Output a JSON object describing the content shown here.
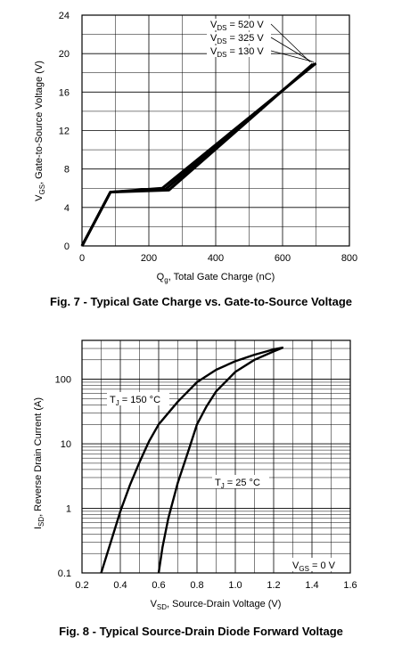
{
  "chart_data": [
    {
      "type": "line",
      "caption": "Fig. 7 - Typical Gate Charge vs. Gate-to-Source Voltage",
      "xlabel_main": "Q",
      "xlabel_sub": "g",
      "xlabel_rest": ", Total Gate Charge (nC)",
      "ylabel_main": "V",
      "ylabel_sub": "GS",
      "ylabel_rest": ", Gate-to-Source Voltage (V)",
      "xlim": [
        0,
        800
      ],
      "ylim": [
        0,
        24
      ],
      "x_ticks": [
        0,
        200,
        400,
        600,
        800
      ],
      "y_ticks": [
        0,
        4,
        8,
        12,
        16,
        20,
        24
      ],
      "grid": true,
      "series": [
        {
          "name": "VDS = 520 V",
          "x": [
            0,
            85,
            240,
            700
          ],
          "y": [
            0,
            5.6,
            6.0,
            19.0
          ]
        },
        {
          "name": "VDS = 325 V",
          "x": [
            0,
            85,
            250,
            695
          ],
          "y": [
            0,
            5.6,
            5.9,
            18.95
          ]
        },
        {
          "name": "VDS = 130 V",
          "x": [
            0,
            85,
            260,
            690
          ],
          "y": [
            0,
            5.6,
            5.8,
            18.9
          ]
        }
      ],
      "annotations": [
        {
          "main": "V",
          "sub": "DS",
          "rest": " = 520 V"
        },
        {
          "main": "V",
          "sub": "DS",
          "rest": " = 325 V"
        },
        {
          "main": "V",
          "sub": "DS",
          "rest": " = 130 V"
        }
      ]
    },
    {
      "type": "line",
      "caption": "Fig. 8 - Typical Source-Drain Diode Forward Voltage",
      "xlabel_main": "V",
      "xlabel_sub": "SD",
      "xlabel_rest": ", Source-Drain Voltage (V)",
      "ylabel_main": "I",
      "ylabel_sub": "SD",
      "ylabel_rest": ", Reverse Drain Current (A)",
      "xlim": [
        0.2,
        1.6
      ],
      "ylim": [
        0.1,
        400
      ],
      "yscale": "log",
      "x_ticks": [
        0.2,
        0.4,
        0.6,
        0.8,
        1.0,
        1.2,
        1.4,
        1.6
      ],
      "x_tick_labels": [
        "0.2",
        "0.4",
        "0.6",
        "0.8",
        "1.0",
        "1.2",
        "1.4",
        "1.6"
      ],
      "y_ticks": [
        0.1,
        1,
        10,
        100
      ],
      "y_tick_labels": [
        "0.1",
        "1",
        "10",
        "100"
      ],
      "grid": true,
      "series": [
        {
          "name": "TJ = 150 °C",
          "x": [
            0.3,
            0.35,
            0.4,
            0.45,
            0.5,
            0.55,
            0.6,
            0.7,
            0.8,
            0.9,
            1.0,
            1.1,
            1.2,
            1.25
          ],
          "y": [
            0.1,
            0.3,
            0.9,
            2.3,
            5.2,
            11,
            20,
            45,
            90,
            140,
            190,
            240,
            290,
            310
          ]
        },
        {
          "name": "TJ = 25 °C",
          "x": [
            0.6,
            0.62,
            0.65,
            0.7,
            0.75,
            0.8,
            0.85,
            0.9,
            1.0,
            1.1,
            1.2,
            1.25
          ],
          "y": [
            0.1,
            0.25,
            0.7,
            2.5,
            7,
            20,
            38,
            65,
            130,
            200,
            270,
            310
          ]
        }
      ],
      "annotations": [
        {
          "main": "T",
          "sub": "J",
          "rest": " = 150 °C"
        },
        {
          "main": "T",
          "sub": "J",
          "rest": " = 25 °C"
        },
        {
          "main": "V",
          "sub": "GS",
          "rest": " = 0 V"
        }
      ]
    }
  ]
}
